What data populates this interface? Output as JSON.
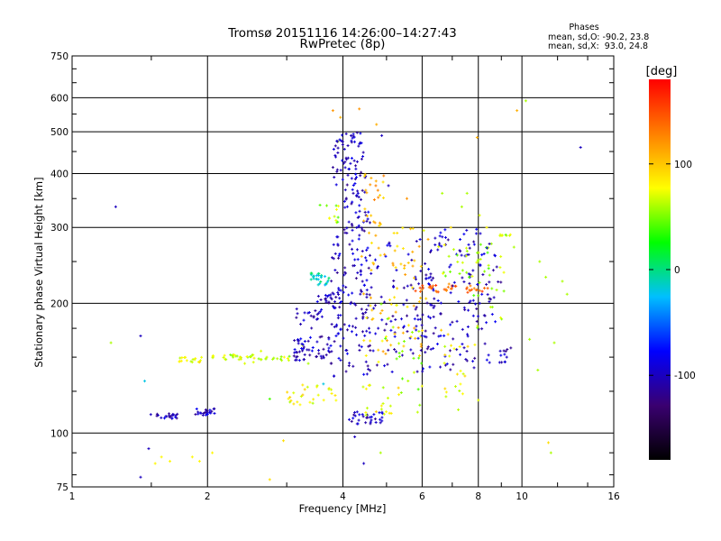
{
  "header": {
    "title": "Tromsø 20151116 14:26:00–14:27:43",
    "subtitle": "RwPretec (8p)"
  },
  "stats": {
    "heading": "Phases",
    "line1": "mean, sd,O: -90.2, 23.8",
    "line2": "mean, sd,X:  93.0, 24.8"
  },
  "chart_data": {
    "type": "scatter",
    "title": "Tromsø 20151116 14:26:00–14:27:43",
    "subtitle": "RwPretec (8p)",
    "xlabel": "Frequency [MHz]",
    "ylabel": "Stationary phase Virtual Height [km]",
    "xscale": "log",
    "yscale": "log",
    "xlim": [
      1,
      16
    ],
    "ylim": [
      75,
      750
    ],
    "xticks": [
      1,
      2,
      4,
      6,
      8,
      10,
      16
    ],
    "yticks": [
      75,
      100,
      200,
      300,
      400,
      500,
      600,
      750
    ],
    "grid": true,
    "colorbar": {
      "label": "[deg]",
      "range": [
        -180,
        180
      ],
      "ticks": [
        100,
        0,
        -100
      ],
      "colors": [
        "#000000",
        "#3a0070",
        "#0000ff",
        "#00bfff",
        "#00ff00",
        "#ffff00",
        "#ff8000",
        "#ff0000"
      ]
    },
    "points": [
      [
        1.25,
        335,
        -100
      ],
      [
        1.22,
        162,
        60
      ],
      [
        1.42,
        168,
        -100
      ],
      [
        1.45,
        132,
        -20
      ],
      [
        1.48,
        92,
        -100
      ],
      [
        1.42,
        79,
        -100
      ],
      [
        1.53,
        85,
        80
      ],
      [
        1.58,
        88,
        80
      ],
      [
        1.65,
        86,
        80
      ],
      [
        1.75,
        147,
        80
      ],
      [
        1.85,
        88,
        80
      ],
      [
        1.92,
        86,
        80
      ],
      [
        2.05,
        90,
        80
      ],
      [
        2.28,
        150,
        60
      ],
      [
        2.42,
        145,
        70
      ],
      [
        2.53,
        146,
        70
      ],
      [
        2.63,
        155,
        70
      ],
      [
        2.75,
        120,
        40
      ],
      [
        2.95,
        96,
        90
      ],
      [
        2.75,
        78,
        90
      ],
      [
        3.05,
        118,
        60
      ],
      [
        3.15,
        150,
        -100
      ],
      [
        3.25,
        160,
        70
      ],
      [
        3.35,
        145,
        60
      ],
      [
        3.5,
        128,
        80
      ],
      [
        3.62,
        130,
        -20
      ],
      [
        3.9,
        170,
        -100
      ],
      [
        3.8,
        560,
        120
      ],
      [
        3.9,
        475,
        60
      ],
      [
        3.95,
        540,
        110
      ],
      [
        4.35,
        565,
        120
      ],
      [
        4.25,
        98,
        -100
      ],
      [
        4.45,
        85,
        -100
      ],
      [
        4.85,
        90,
        60
      ],
      [
        4.75,
        520,
        110
      ],
      [
        4.88,
        490,
        -100
      ],
      [
        5.05,
        375,
        -100
      ],
      [
        5.55,
        350,
        120
      ],
      [
        6.05,
        295,
        70
      ],
      [
        6.65,
        360,
        60
      ],
      [
        6.95,
        300,
        90
      ],
      [
        7.35,
        335,
        60
      ],
      [
        7.55,
        360,
        60
      ],
      [
        7.95,
        485,
        110
      ],
      [
        8.05,
        320,
        70
      ],
      [
        8.35,
        300,
        80
      ],
      [
        8.45,
        205,
        60
      ],
      [
        8.95,
        155,
        -100
      ],
      [
        9.25,
        150,
        -100
      ],
      [
        9.6,
        270,
        60
      ],
      [
        9.75,
        560,
        110
      ],
      [
        10.2,
        590,
        60
      ],
      [
        10.4,
        165,
        60
      ],
      [
        10.85,
        140,
        60
      ],
      [
        10.95,
        250,
        60
      ],
      [
        11.3,
        230,
        60
      ],
      [
        11.45,
        95,
        90
      ],
      [
        11.6,
        90,
        60
      ],
      [
        11.8,
        162,
        60
      ],
      [
        12.3,
        225,
        60
      ],
      [
        12.6,
        210,
        60
      ],
      [
        13.5,
        460,
        -100
      ]
    ],
    "clusters": [
      {
        "f": [
          1.48,
          1.72
        ],
        "h": [
          108,
          111
        ],
        "phase": -100,
        "n": 22
      },
      {
        "f": [
          1.88,
          2.08
        ],
        "h": [
          110,
          114
        ],
        "phase": -100,
        "n": 24
      },
      {
        "f": [
          1.72,
          1.95
        ],
        "h": [
          146,
          150
        ],
        "phase": 80,
        "n": 16
      },
      {
        "f": [
          2.05,
          2.55
        ],
        "h": [
          148,
          152
        ],
        "phase": 70,
        "n": 26
      },
      {
        "f": [
          2.55,
          3.05
        ],
        "h": [
          147,
          151
        ],
        "phase": 60,
        "n": 16
      },
      {
        "f": [
          3.1,
          3.8
        ],
        "h": [
          145,
          168
        ],
        "phase": -100,
        "n": 55
      },
      {
        "f": [
          3.0,
          3.9
        ],
        "h": [
          115,
          130
        ],
        "phase": 80,
        "n": 25
      },
      {
        "f": [
          3.15,
          3.65
        ],
        "h": [
          175,
          195
        ],
        "phase": -100,
        "n": 20
      },
      {
        "f": [
          3.35,
          3.75
        ],
        "h": [
          220,
          235
        ],
        "phase": -10,
        "n": 28
      },
      {
        "f": [
          3.5,
          3.85
        ],
        "h": [
          200,
          210
        ],
        "phase": -100,
        "n": 14
      },
      {
        "f": [
          3.55,
          3.95
        ],
        "h": [
          300,
          340
        ],
        "phase": 60,
        "n": 12
      },
      {
        "f": [
          3.75,
          4.6
        ],
        "h": [
          135,
          300
        ],
        "phase": -100,
        "n": 140
      },
      {
        "f": [
          3.8,
          4.5
        ],
        "h": [
          360,
          500
        ],
        "phase": -100,
        "n": 75
      },
      {
        "f": [
          4.0,
          4.6
        ],
        "h": [
          300,
          360
        ],
        "phase": -100,
        "n": 28
      },
      {
        "f": [
          4.45,
          5.0
        ],
        "h": [
          300,
          400
        ],
        "phase": 110,
        "n": 24
      },
      {
        "f": [
          4.1,
          4.9
        ],
        "h": [
          105,
          112
        ],
        "phase": -100,
        "n": 32
      },
      {
        "f": [
          4.4,
          5.5
        ],
        "h": [
          110,
          130
        ],
        "phase": 80,
        "n": 18
      },
      {
        "f": [
          4.5,
          6.6
        ],
        "h": [
          138,
          290
        ],
        "phase": -100,
        "n": 110
      },
      {
        "f": [
          4.4,
          6.2
        ],
        "h": [
          150,
          300
        ],
        "phase": 100,
        "n": 75
      },
      {
        "f": [
          4.8,
          6.0
        ],
        "h": [
          110,
          200
        ],
        "phase": 60,
        "n": 30
      },
      {
        "f": [
          5.8,
          8.4
        ],
        "h": [
          212,
          222
        ],
        "phase": 140,
        "n": 40
      },
      {
        "f": [
          6.2,
          8.2
        ],
        "h": [
          200,
          300
        ],
        "phase": -100,
        "n": 50
      },
      {
        "f": [
          5.8,
          8.5
        ],
        "h": [
          140,
          200
        ],
        "phase": -100,
        "n": 55
      },
      {
        "f": [
          6.5,
          8.8
        ],
        "h": [
          230,
          275
        ],
        "phase": 60,
        "n": 32
      },
      {
        "f": [
          6.6,
          8.0
        ],
        "h": [
          112,
          180
        ],
        "phase": 80,
        "n": 24
      },
      {
        "f": [
          7.6,
          9.0
        ],
        "h": [
          180,
          275
        ],
        "phase": -100,
        "n": 28
      },
      {
        "f": [
          7.8,
          9.2
        ],
        "h": [
          175,
          270
        ],
        "phase": 60,
        "n": 18
      },
      {
        "f": [
          8.4,
          9.5
        ],
        "h": [
          285,
          290
        ],
        "phase": 60,
        "n": 8
      },
      {
        "f": [
          8.8,
          9.6
        ],
        "h": [
          145,
          160
        ],
        "phase": -100,
        "n": 10
      }
    ]
  }
}
